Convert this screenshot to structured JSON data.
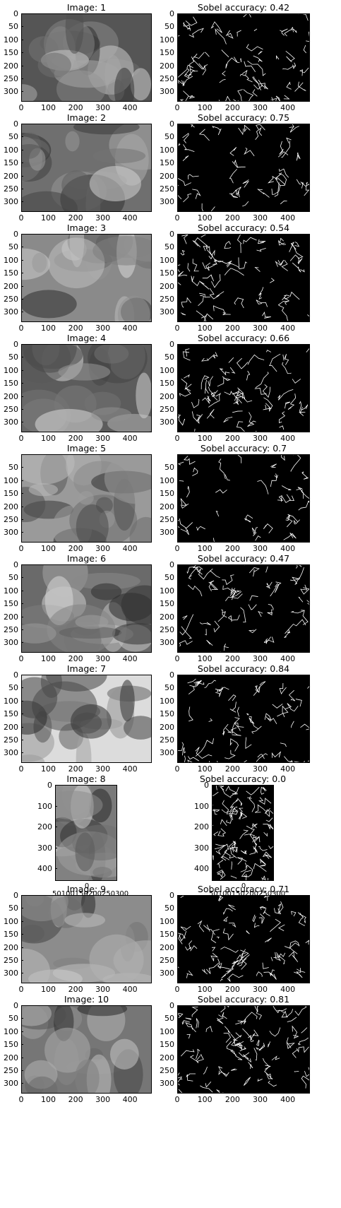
{
  "panels": [
    {
      "title": "Image: 1",
      "edge_title": "Sobel accuracy: 0.42",
      "yticks": [
        "0",
        "50",
        "100",
        "150",
        "200",
        "250",
        "300"
      ],
      "xticks": [
        "0",
        "100",
        "200",
        "300",
        "400"
      ],
      "tone": "#555555"
    },
    {
      "title": "Image: 2",
      "edge_title": "Sobel accuracy: 0.75",
      "yticks": [
        "0",
        "50",
        "100",
        "150",
        "200",
        "250",
        "300"
      ],
      "xticks": [
        "0",
        "100",
        "200",
        "300",
        "400"
      ],
      "tone": "#6f6f6f"
    },
    {
      "title": "Image: 3",
      "edge_title": "Sobel accuracy: 0.54",
      "yticks": [
        "0",
        "50",
        "100",
        "150",
        "200",
        "250",
        "300"
      ],
      "xticks": [
        "0",
        "100",
        "200",
        "300",
        "400"
      ],
      "tone": "#8a8a8a"
    },
    {
      "title": "Image: 4",
      "edge_title": "Sobel accuracy: 0.66",
      "yticks": [
        "0",
        "50",
        "100",
        "150",
        "200",
        "250",
        "300"
      ],
      "xticks": [
        "0",
        "100",
        "200",
        "300",
        "400"
      ],
      "tone": "#5c5c5c"
    },
    {
      "title": "Image: 5",
      "edge_title": "Sobel accuracy: 0.7",
      "yticks": [
        "50",
        "100",
        "150",
        "200",
        "250",
        "300"
      ],
      "xticks": [
        "0",
        "100",
        "200",
        "300",
        "400"
      ],
      "tone": "#9a9a9a"
    },
    {
      "title": "Image: 6",
      "edge_title": "Sobel accuracy: 0.47",
      "yticks": [
        "0",
        "50",
        "100",
        "150",
        "200",
        "250",
        "300"
      ],
      "xticks": [
        "0",
        "100",
        "200",
        "300",
        "400"
      ],
      "tone": "#6a6a6a"
    },
    {
      "title": "Image: 7",
      "edge_title": "Sobel accuracy: 0.84",
      "yticks": [
        "0",
        "50",
        "100",
        "150",
        "200",
        "250",
        "300"
      ],
      "xticks": [
        "0",
        "100",
        "200",
        "300",
        "400"
      ],
      "tone": "#dcdcdc"
    },
    {
      "title": "Image: 8",
      "edge_title": "Sobel accuracy: 0.0",
      "yticks": [
        "0",
        "100",
        "200",
        "300",
        "400"
      ],
      "xticks": [
        "0",
        "50",
        "100",
        "150",
        "200",
        "250",
        "300"
      ],
      "xticks_text": "0 50100150200250300",
      "tone": "#7a7a7a"
    },
    {
      "title": "Image: 9",
      "edge_title": "Sobel accuracy: 0.71",
      "yticks": [
        "0",
        "50",
        "100",
        "150",
        "200",
        "250",
        "300"
      ],
      "xticks": [
        "0",
        "100",
        "200",
        "300",
        "400"
      ],
      "tone": "#8c8c8c"
    },
    {
      "title": "Image: 10",
      "edge_title": "Sobel accuracy: 0.81",
      "yticks": [
        "0",
        "50",
        "100",
        "150",
        "200",
        "250",
        "300"
      ],
      "xticks": [
        "0",
        "100",
        "200",
        "300",
        "400"
      ],
      "tone": "#767676"
    }
  ]
}
